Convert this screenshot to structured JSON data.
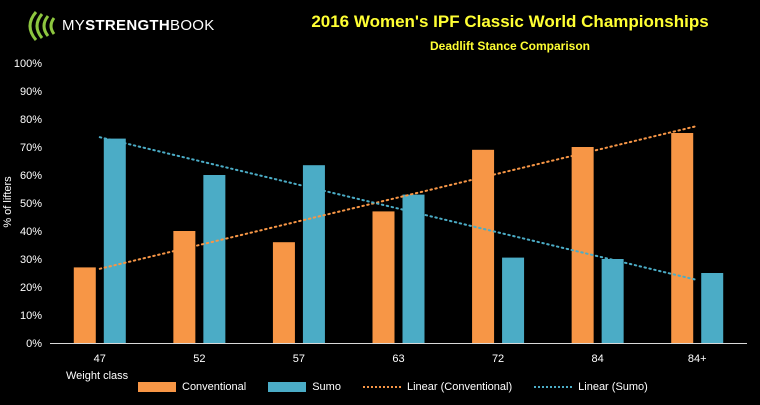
{
  "logo": {
    "text_regular_1": "MY",
    "text_bold": "STRENGTH",
    "text_regular_2": "BOOK",
    "color": "#8dc63f"
  },
  "chart_data": {
    "type": "bar",
    "title": "2016 Women's IPF Classic World Championships",
    "subtitle": "Deadlift Stance Comparison",
    "xlabel": "Weight class",
    "ylabel": "% of lifters",
    "categories": [
      "47",
      "52",
      "57",
      "63",
      "72",
      "84",
      "84+"
    ],
    "ylim": [
      0,
      100
    ],
    "yticks": [
      0,
      10,
      20,
      30,
      40,
      50,
      60,
      70,
      80,
      90,
      100
    ],
    "ytick_labels": [
      "0%",
      "10%",
      "20%",
      "30%",
      "40%",
      "50%",
      "60%",
      "70%",
      "80%",
      "90%",
      "100%"
    ],
    "grid": false,
    "legend_position": "bottom",
    "series": [
      {
        "name": "Conventional",
        "values": [
          27,
          40,
          36,
          47,
          69,
          70,
          75
        ],
        "color": "#f79646"
      },
      {
        "name": "Sumo",
        "values": [
          73,
          60,
          63.5,
          53,
          30.5,
          30,
          25
        ],
        "color": "#4bacc6"
      }
    ],
    "trendlines": [
      {
        "name": "Linear (Conventional)",
        "start": 26.5,
        "end": 77.5,
        "color": "#f79646"
      },
      {
        "name": "Linear (Sumo)",
        "start": 73.5,
        "end": 22.5,
        "color": "#4bacc6"
      }
    ],
    "axis_color": "#d9d9d9"
  }
}
